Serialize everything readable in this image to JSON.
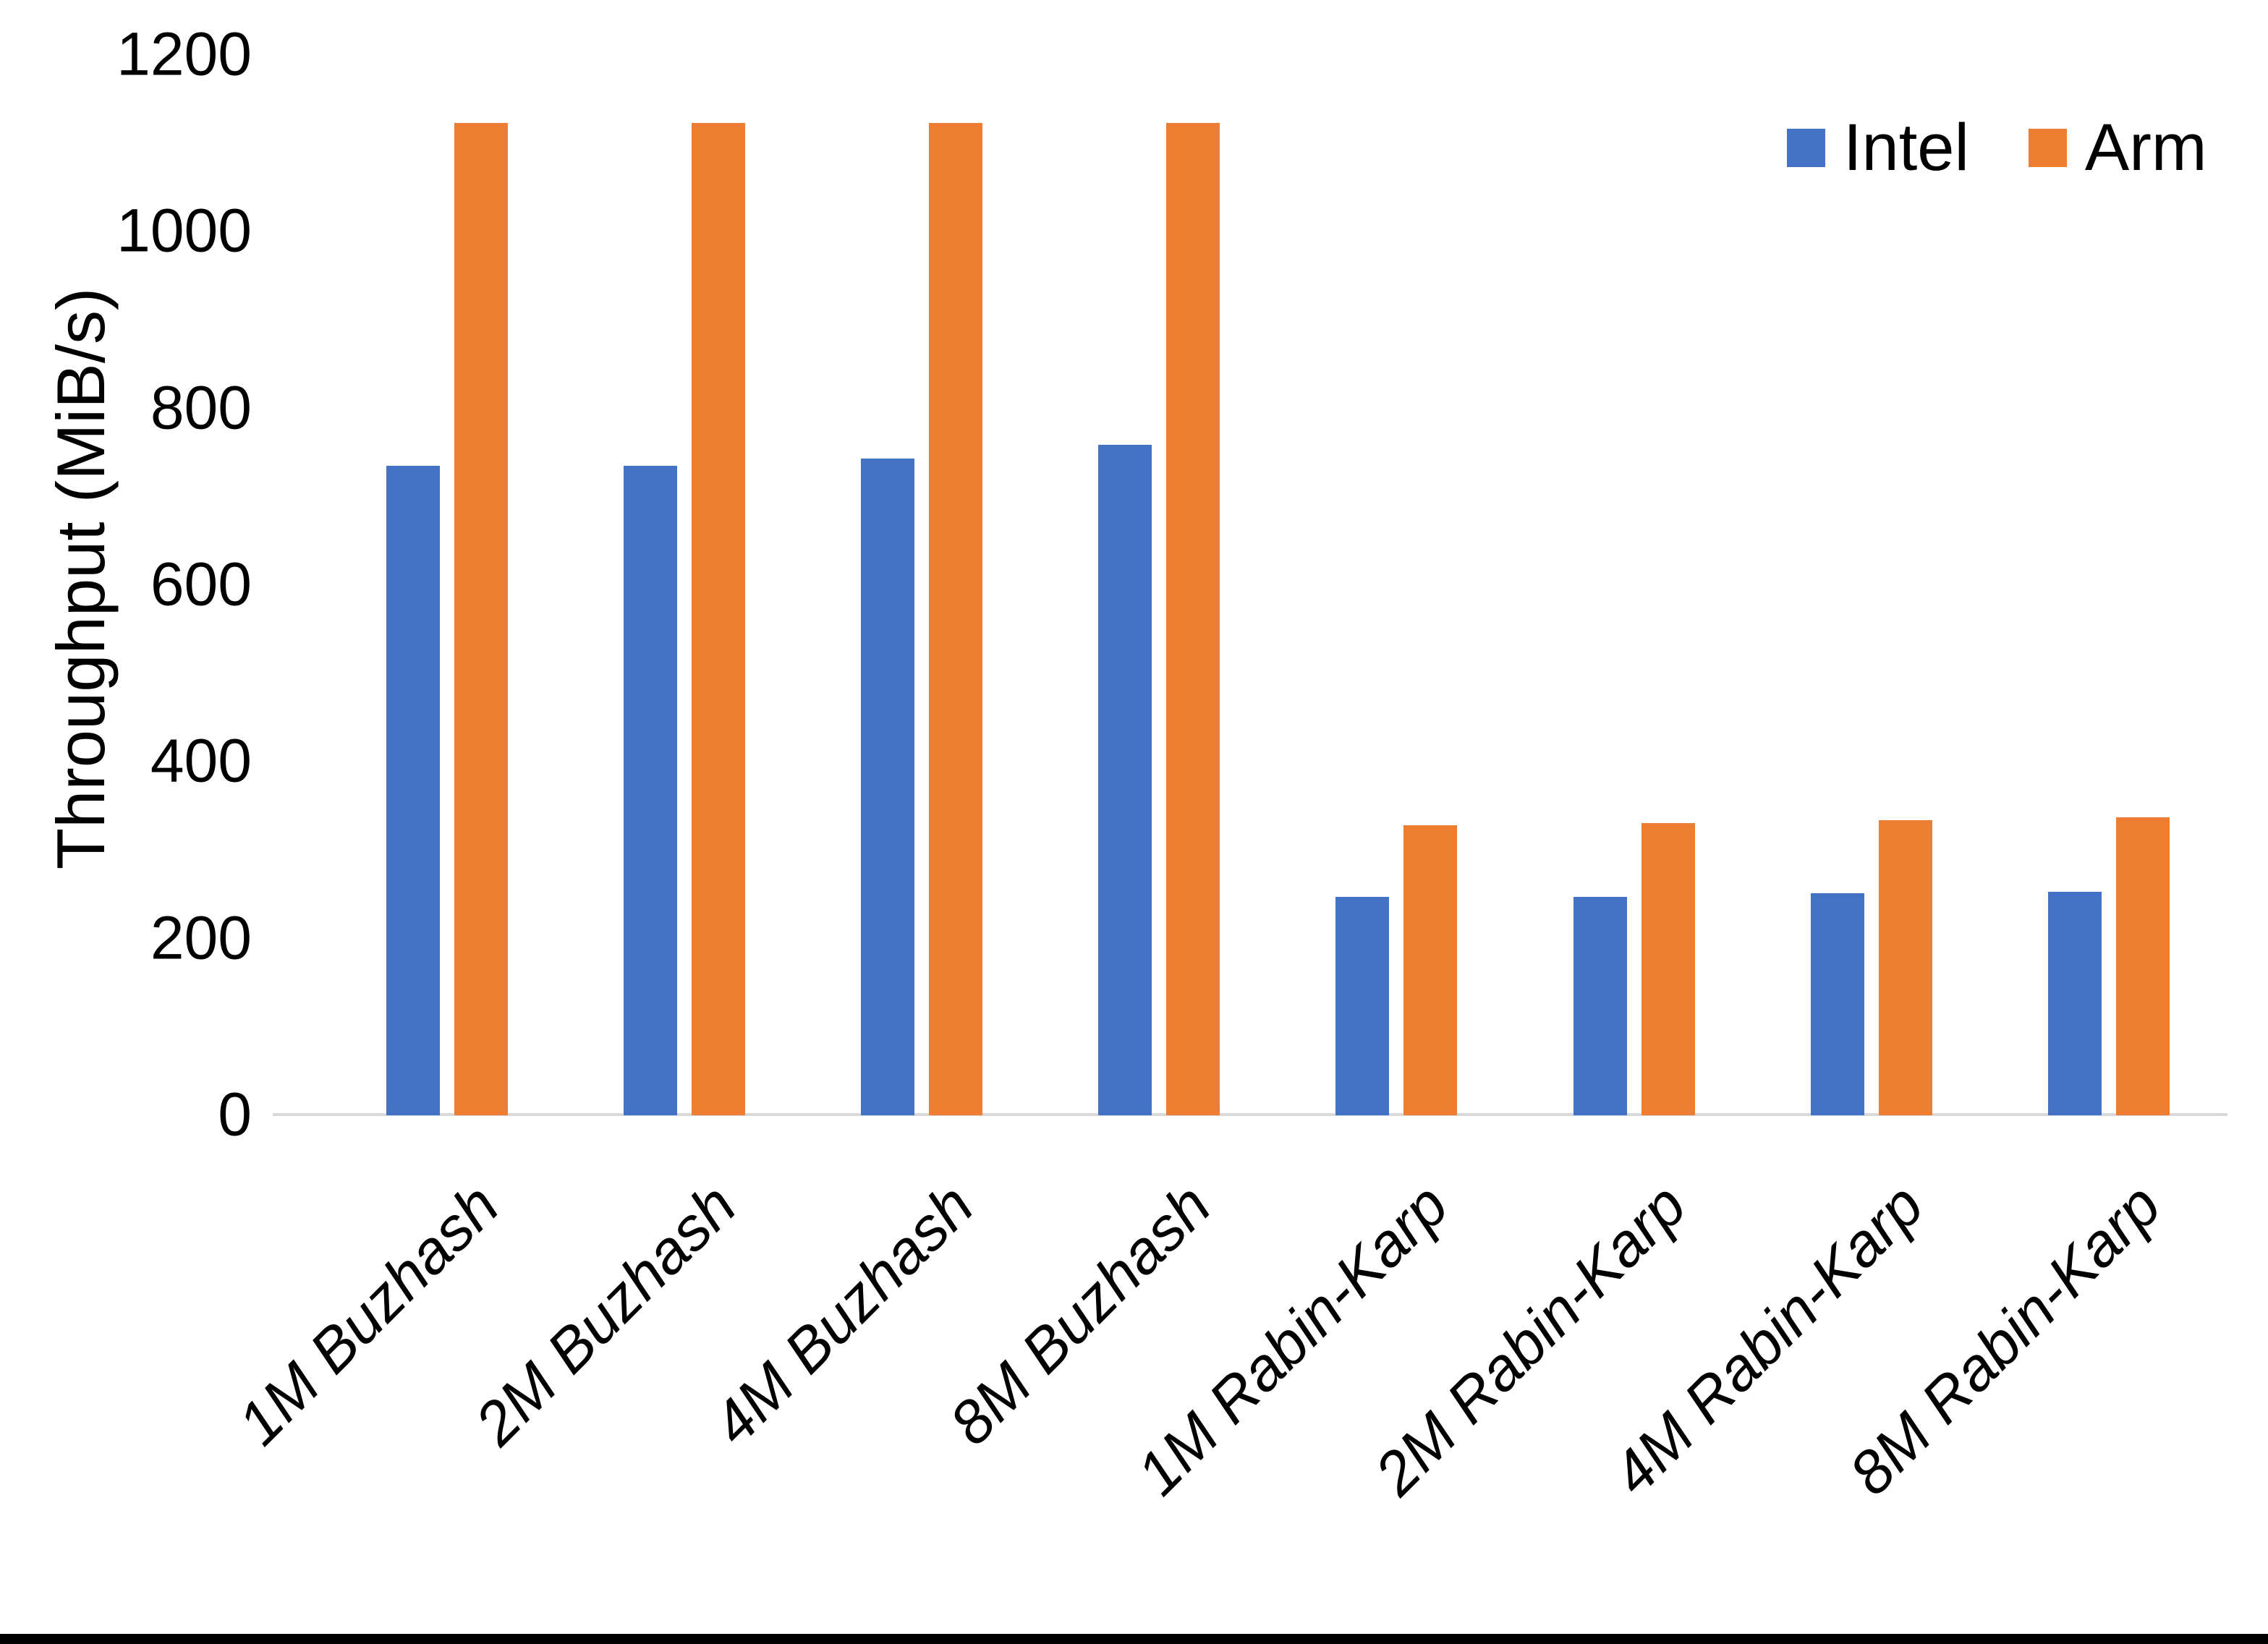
{
  "chart_data": {
    "type": "bar",
    "title": "",
    "xlabel": "",
    "ylabel": "Throughput (MiB/s)",
    "categories": [
      "1M Buzhash",
      "2M Buzhash",
      "4M Buzhash",
      "8M Buzhash",
      "1M Rabin-Karp",
      "2M Rabin-Karp",
      "4M Rabin-Karp",
      "8M Rabin-Karp"
    ],
    "series": [
      {
        "name": "Intel",
        "color": "#4472C4",
        "values": [
          735,
          735,
          743,
          759,
          247,
          247,
          251,
          253
        ]
      },
      {
        "name": "Arm",
        "color": "#ED7D31",
        "values": [
          1123,
          1123,
          1123,
          1123,
          328,
          331,
          334,
          337
        ]
      }
    ],
    "ylim": [
      0,
      1200
    ],
    "yticks": [
      0,
      200,
      400,
      600,
      800,
      1000,
      1200
    ],
    "grid": false,
    "legend_position": "top-right",
    "axis_line_color": "#D9D9D9",
    "text_color": "#000000",
    "background_color": "#FFFFFF",
    "bottom_border_color": "#000000"
  }
}
